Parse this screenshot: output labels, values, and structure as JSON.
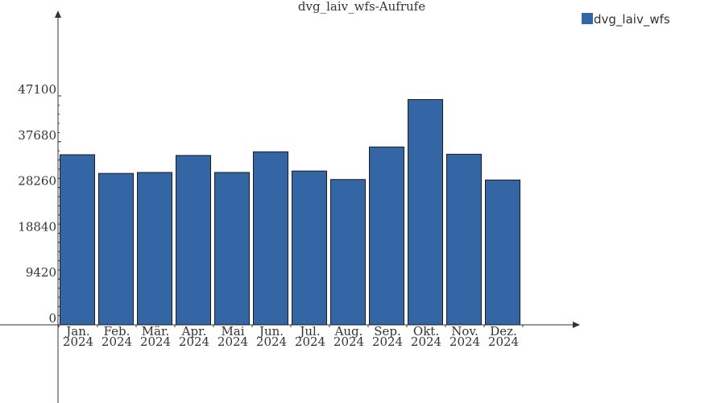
{
  "chart_data": {
    "type": "bar",
    "title": "dvg_laiv_wfs-Aufrufe",
    "xlabel": "",
    "ylabel": "",
    "categories": [
      [
        "Jan.",
        "2024"
      ],
      [
        "Feb.",
        "2024"
      ],
      [
        "Mär.",
        "2024"
      ],
      [
        "Apr.",
        "2024"
      ],
      [
        "Mai",
        "2024"
      ],
      [
        "Jun.",
        "2024"
      ],
      [
        "Jul.",
        "2024"
      ],
      [
        "Aug.",
        "2024"
      ],
      [
        "Sep.",
        "2024"
      ],
      [
        "Okt.",
        "2024"
      ],
      [
        "Nov.",
        "2024"
      ],
      [
        "Dez.",
        "2024"
      ]
    ],
    "series": [
      {
        "name": "dvg_laiv_wfs",
        "color": "#3465a4",
        "values": [
          35000,
          31150,
          31350,
          34850,
          31350,
          35600,
          31650,
          29900,
          36600,
          46350,
          35100,
          29800
        ]
      }
    ],
    "yticks": [
      "0",
      "9420",
      "18840",
      "28260",
      "37680",
      "47100"
    ],
    "ytick_values": [
      0,
      9420,
      18840,
      28260,
      37680,
      47100
    ],
    "ylim": [
      0,
      47100
    ],
    "grid": false,
    "legend": "top-right"
  }
}
